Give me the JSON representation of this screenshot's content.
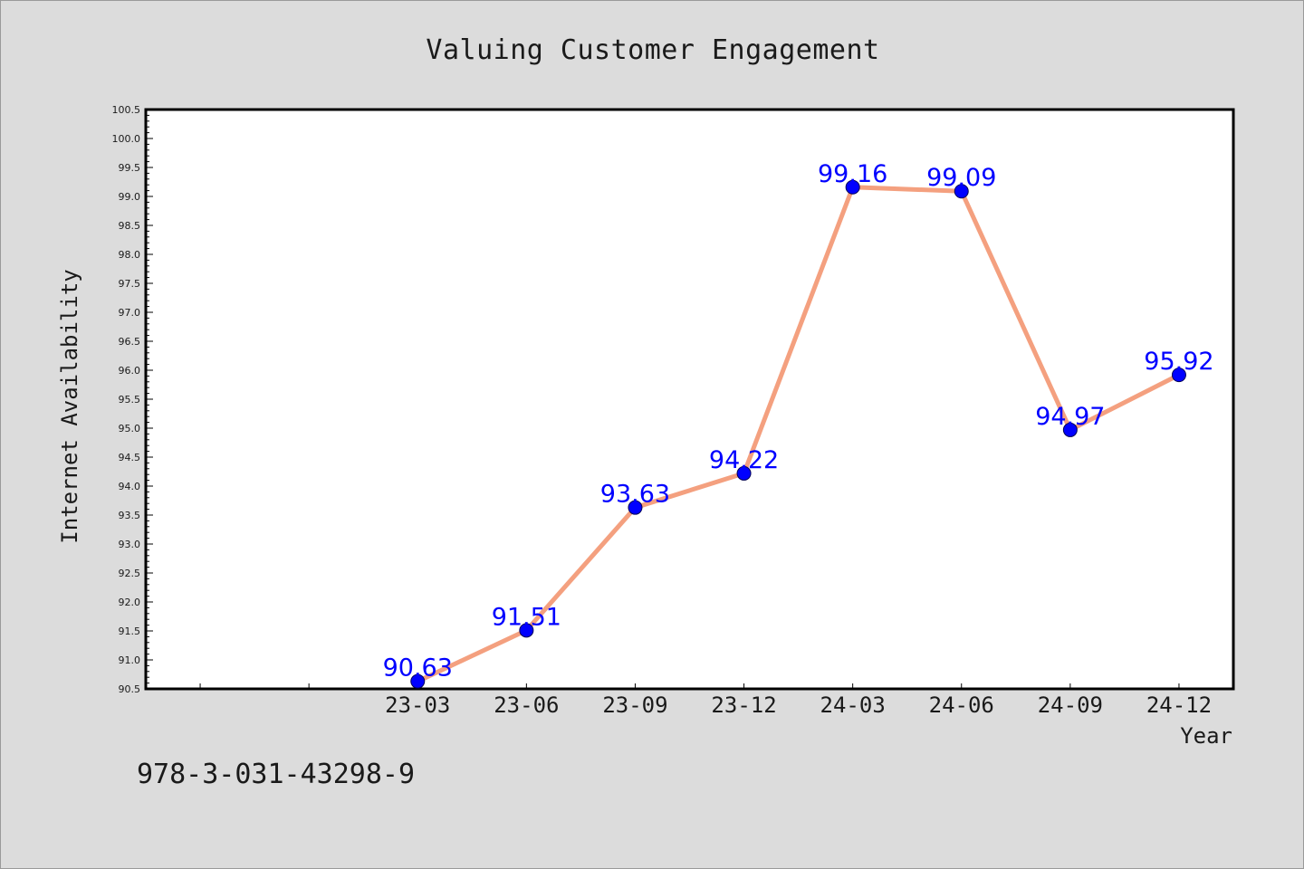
{
  "chart_data": {
    "type": "line",
    "title": "Valuing Customer Engagement",
    "xlabel": "Year",
    "ylabel": "Internet Availability",
    "categories": [
      "23-03",
      "23-06",
      "23-09",
      "23-12",
      "24-03",
      "24-06",
      "24-09",
      "24-12"
    ],
    "series": [
      {
        "values": [
          90.63,
          91.51,
          93.63,
          94.22,
          99.16,
          99.09,
          94.97,
          95.92
        ]
      }
    ],
    "data_labels": [
      "90.63",
      "91.51",
      "93.63",
      "94.22",
      "99.16",
      "99.09",
      "94.97",
      "95.92"
    ],
    "ylim": [
      90.5,
      100.5
    ],
    "y_major_step": 0.5,
    "y_tick_labels": [
      "90.5",
      "91.0",
      "91.5",
      "92.0",
      "92.5",
      "93.0",
      "93.5",
      "94.0",
      "94.5",
      "95.0",
      "95.5",
      "96.0",
      "96.5",
      "97.0",
      "97.5",
      "98.0",
      "98.5",
      "99.0",
      "99.5",
      "100.0",
      "100.5"
    ],
    "x_extra_leading_slots": 2,
    "grid": false,
    "legend": "none",
    "colors": {
      "line": "#f4a07f",
      "marker": "#0000ff",
      "data_label": "#0000ff",
      "plot_background": "#ffffff",
      "figure_background": "#dcdcdc"
    }
  },
  "footer": {
    "code": "978-3-031-43298-9"
  }
}
